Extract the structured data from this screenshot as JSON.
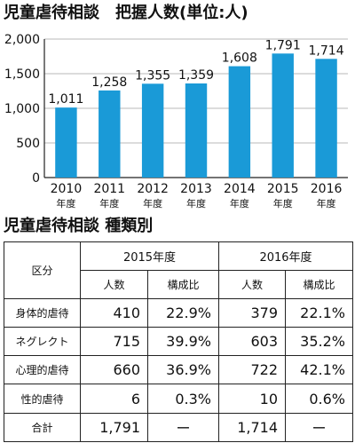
{
  "chart_title": "児童虐待相談　把握人数(単位:人)",
  "table_title": "児童虐待相談 種類別",
  "chart_data": {
    "type": "bar",
    "title": "児童虐待相談　把握人数(単位:人)",
    "categories": [
      "2010",
      "2011",
      "2012",
      "2013",
      "2014",
      "2015",
      "2016"
    ],
    "category_suffix": "年度",
    "values": [
      1011,
      1258,
      1355,
      1359,
      1608,
      1791,
      1714
    ],
    "value_labels": [
      "1,011",
      "1,258",
      "1,355",
      "1,359",
      "1,608",
      "1,791",
      "1,714"
    ],
    "yticks": [
      "0",
      "500",
      "1,000",
      "1,500",
      "2,000"
    ],
    "ylim": [
      0,
      2000
    ],
    "grid": true,
    "bar_color": "#1a9ad7",
    "grid_color": "#b9b9b9"
  },
  "table": {
    "corner": "区分",
    "years": [
      "2015年度",
      "2016年度"
    ],
    "subheaders": [
      "人数",
      "構成比",
      "人数",
      "構成比"
    ],
    "rows": [
      {
        "label": "身体的虐待",
        "cells": [
          "410",
          "22.9%",
          "379",
          "22.1%"
        ]
      },
      {
        "label": "ネグレクト",
        "cells": [
          "715",
          "39.9%",
          "603",
          "35.2%"
        ]
      },
      {
        "label": "心理的虐待",
        "cells": [
          "660",
          "36.9%",
          "722",
          "42.1%"
        ]
      },
      {
        "label": "性的虐待",
        "cells": [
          "6",
          "0.3%",
          "10",
          "0.6%"
        ]
      },
      {
        "label": "合計",
        "cells": [
          "1,791",
          "ー",
          "1,714",
          "ー"
        ]
      }
    ]
  }
}
